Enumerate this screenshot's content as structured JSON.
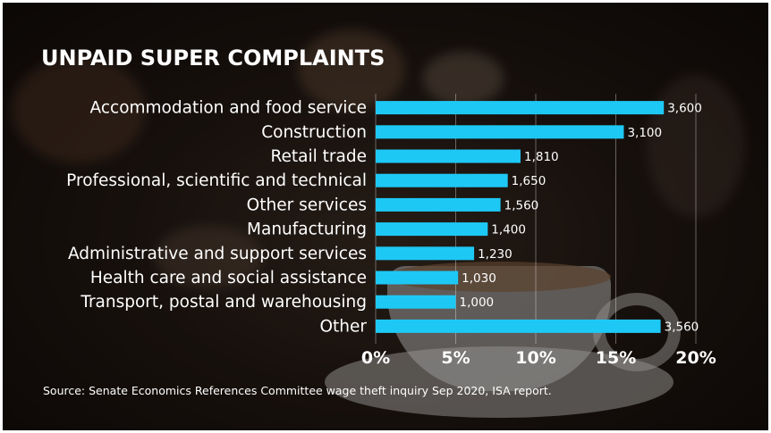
{
  "chart_data": {
    "type": "bar",
    "orientation": "horizontal",
    "title": "UNPAID SUPER COMPLAINTS",
    "categories": [
      "Accommodation and food service",
      "Construction",
      "Retail trade",
      "Professional, scientific and technical",
      "Other services",
      "Manufacturing",
      "Administrative and support services",
      "Health care and social assistance",
      "Transport, postal and warehousing",
      "Other"
    ],
    "values": [
      18.0,
      15.5,
      9.05,
      8.25,
      7.8,
      7.0,
      6.15,
      5.15,
      5.0,
      17.8
    ],
    "data_labels": [
      "3,600",
      "3,100",
      "1,810",
      "1,650",
      "1,560",
      "1,400",
      "1,230",
      "1,030",
      "1,000",
      "3,560"
    ],
    "xlim": [
      0,
      20
    ],
    "xticks": [
      0,
      5,
      10,
      15,
      20
    ],
    "xtick_labels": [
      "0%",
      "5%",
      "10%",
      "15%",
      "20%"
    ],
    "xlabel": "",
    "ylabel": "",
    "grid": "vertical",
    "bar_color": "#1ec8f5",
    "source": "Source: Senate Economics References Committee wage theft inquiry Sep 2020, ISA report."
  }
}
